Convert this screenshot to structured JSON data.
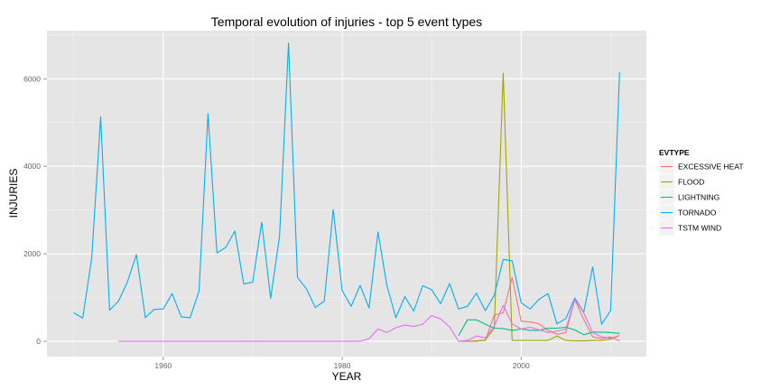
{
  "chart_data": {
    "type": "line",
    "title": "Temporal evolution of injuries - top 5 event types",
    "xlabel": "YEAR",
    "ylabel": "INJURIES",
    "xlim": [
      1947,
      2014
    ],
    "ylim": [
      -350,
      7100
    ],
    "x_ticks": [
      1960,
      1980,
      2000
    ],
    "y_ticks": [
      0,
      2000,
      4000,
      6000
    ],
    "grid": true,
    "legend": {
      "title": "EVTYPE",
      "position": "right"
    },
    "series": [
      {
        "name": "EXCESSIVE HEAT",
        "color": "#F8766D",
        "x": [
          1993,
          1994,
          1995,
          1996,
          1997,
          1998,
          1999,
          2000,
          2001,
          2002,
          2003,
          2004,
          2005,
          2006,
          2007,
          2008,
          2009,
          2010,
          2011
        ],
        "y": [
          0,
          0,
          10,
          20,
          600,
          650,
          1460,
          460,
          440,
          400,
          250,
          160,
          200,
          950,
          500,
          100,
          60,
          100,
          10
        ]
      },
      {
        "name": "FLOOD",
        "color": "#A3A500",
        "x": [
          1993,
          1994,
          1995,
          1996,
          1997,
          1998,
          1999,
          2000,
          2001,
          2002,
          2003,
          2004,
          2005,
          2006,
          2007,
          2008,
          2009,
          2010,
          2011
        ],
        "y": [
          0,
          0,
          0,
          30,
          300,
          6130,
          20,
          20,
          20,
          20,
          20,
          120,
          20,
          10,
          10,
          20,
          20,
          50,
          130
        ]
      },
      {
        "name": "LIGHTNING",
        "color": "#00BF7D",
        "x": [
          1993,
          1994,
          1995,
          1996,
          1997,
          1998,
          1999,
          2000,
          2001,
          2002,
          2003,
          2004,
          2005,
          2006,
          2007,
          2008,
          2009,
          2010,
          2011
        ],
        "y": [
          130,
          490,
          490,
          390,
          300,
          290,
          250,
          280,
          250,
          250,
          300,
          300,
          320,
          260,
          150,
          210,
          210,
          200,
          180
        ]
      },
      {
        "name": "TORNADO",
        "color": "#00B0F6",
        "x": [
          1950,
          1951,
          1952,
          1953,
          1954,
          1955,
          1956,
          1957,
          1958,
          1959,
          1960,
          1961,
          1962,
          1963,
          1964,
          1965,
          1966,
          1967,
          1968,
          1969,
          1970,
          1971,
          1972,
          1973,
          1974,
          1975,
          1976,
          1977,
          1978,
          1979,
          1980,
          1981,
          1982,
          1983,
          1984,
          1985,
          1986,
          1987,
          1988,
          1989,
          1990,
          1991,
          1992,
          1993,
          1994,
          1995,
          1996,
          1997,
          1998,
          1999,
          2000,
          2001,
          2002,
          2003,
          2004,
          2005,
          2006,
          2007,
          2008,
          2009,
          2010,
          2011
        ],
        "y": [
          650,
          530,
          1900,
          5130,
          710,
          920,
          1360,
          1980,
          540,
          730,
          740,
          1090,
          560,
          540,
          1150,
          5200,
          2020,
          2150,
          2520,
          1310,
          1350,
          2720,
          980,
          2410,
          6820,
          1460,
          1200,
          770,
          920,
          3010,
          1160,
          800,
          1280,
          760,
          2500,
          1270,
          540,
          1020,
          690,
          1270,
          1180,
          860,
          1320,
          740,
          800,
          1100,
          700,
          1050,
          1870,
          1840,
          880,
          740,
          960,
          1090,
          400,
          520,
          990,
          660,
          1700,
          390,
          700,
          6150
        ]
      },
      {
        "name": "TSTM WIND",
        "color": "#E76BF3",
        "x": [
          1955,
          1956,
          1957,
          1958,
          1959,
          1960,
          1961,
          1962,
          1963,
          1964,
          1965,
          1966,
          1967,
          1968,
          1969,
          1970,
          1971,
          1972,
          1973,
          1974,
          1975,
          1976,
          1977,
          1978,
          1979,
          1980,
          1981,
          1982,
          1983,
          1984,
          1985,
          1986,
          1987,
          1988,
          1989,
          1990,
          1991,
          1992,
          1993,
          1994,
          1995,
          1996,
          1997,
          1998,
          1999,
          2000,
          2001,
          2002,
          2003,
          2004,
          2005,
          2006,
          2007,
          2008,
          2009,
          2010,
          2011
        ],
        "y": [
          0,
          0,
          0,
          0,
          0,
          0,
          0,
          0,
          0,
          0,
          0,
          0,
          0,
          0,
          0,
          0,
          0,
          0,
          0,
          0,
          0,
          0,
          0,
          0,
          0,
          0,
          0,
          0,
          60,
          280,
          200,
          310,
          370,
          340,
          390,
          590,
          510,
          330,
          0,
          20,
          120,
          80,
          350,
          820,
          400,
          280,
          320,
          260,
          200,
          230,
          280,
          960,
          650,
          200,
          100,
          70,
          130
        ]
      }
    ]
  }
}
